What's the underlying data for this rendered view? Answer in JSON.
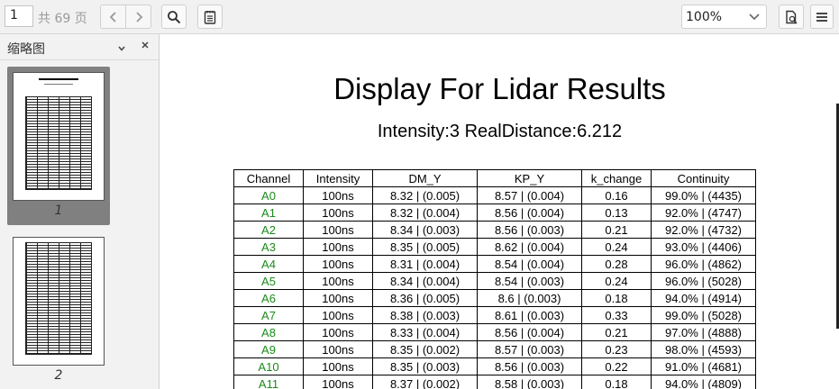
{
  "toolbar": {
    "page_current": "1",
    "page_total_label": "共 69 页",
    "zoom_value": "100%"
  },
  "sidebar": {
    "title": "缩略图",
    "thumbnails": [
      {
        "page_label": "1",
        "selected": true
      },
      {
        "page_label": "2",
        "selected": false
      }
    ]
  },
  "document": {
    "title": "Display For Lidar Results",
    "subtitle": "Intensity:3 RealDistance:6.212",
    "table": {
      "headers": [
        "Channel",
        "Intensity",
        "DM_Y",
        "KP_Y",
        "k_change",
        "Continuity"
      ],
      "rows": [
        [
          "A0",
          "100ns",
          "8.32 | (0.005)",
          "8.57 | (0.004)",
          "0.16",
          "99.0% | (4435)"
        ],
        [
          "A1",
          "100ns",
          "8.32 | (0.004)",
          "8.56 | (0.004)",
          "0.13",
          "92.0% | (4747)"
        ],
        [
          "A2",
          "100ns",
          "8.34 | (0.003)",
          "8.56 | (0.003)",
          "0.21",
          "92.0% | (4732)"
        ],
        [
          "A3",
          "100ns",
          "8.35 | (0.005)",
          "8.62 | (0.004)",
          "0.24",
          "93.0% | (4406)"
        ],
        [
          "A4",
          "100ns",
          "8.31 | (0.004)",
          "8.54 | (0.004)",
          "0.28",
          "96.0% | (4862)"
        ],
        [
          "A5",
          "100ns",
          "8.34 | (0.004)",
          "8.54 | (0.003)",
          "0.24",
          "96.0% | (5028)"
        ],
        [
          "A6",
          "100ns",
          "8.36 | (0.005)",
          "8.6 | (0.003)",
          "0.18",
          "94.0% | (4914)"
        ],
        [
          "A7",
          "100ns",
          "8.38 | (0.003)",
          "8.61 | (0.003)",
          "0.33",
          "99.0% | (5028)"
        ],
        [
          "A8",
          "100ns",
          "8.33 | (0.004)",
          "8.56 | (0.004)",
          "0.21",
          "97.0% | (4888)"
        ],
        [
          "A9",
          "100ns",
          "8.35 | (0.002)",
          "8.57 | (0.003)",
          "0.23",
          "98.0% | (4593)"
        ],
        [
          "A10",
          "100ns",
          "8.35 | (0.003)",
          "8.56 | (0.003)",
          "0.22",
          "91.0% | (4681)"
        ],
        [
          "A11",
          "100ns",
          "8.37 | (0.002)",
          "8.58 | (0.003)",
          "0.18",
          "94.0% | (4809)"
        ]
      ]
    }
  },
  "colors": {
    "channel_text": "#1a8a1a",
    "thumbnail_selected_bg": "#808080"
  },
  "icons": [
    "chevron-left-icon",
    "chevron-right-icon",
    "search-icon",
    "notes-icon",
    "chevron-down-icon",
    "export-icon",
    "menu-icon",
    "close-icon"
  ]
}
